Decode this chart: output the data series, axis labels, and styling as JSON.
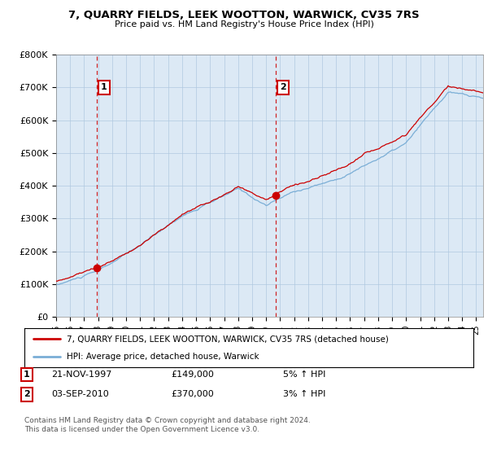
{
  "title": "7, QUARRY FIELDS, LEEK WOOTTON, WARWICK, CV35 7RS",
  "subtitle": "Price paid vs. HM Land Registry's House Price Index (HPI)",
  "ylim": [
    0,
    800000
  ],
  "yticks": [
    0,
    100000,
    200000,
    300000,
    400000,
    500000,
    600000,
    700000,
    800000
  ],
  "ytick_labels": [
    "£0",
    "£100K",
    "£200K",
    "£300K",
    "£400K",
    "£500K",
    "£600K",
    "£700K",
    "£800K"
  ],
  "sale1_year": 1997.9,
  "sale1_price": 149000,
  "sale1_label": "1",
  "sale1_date": "21-NOV-1997",
  "sale1_amount": "£149,000",
  "sale1_hpi": "5% ↑ HPI",
  "sale2_year": 2010.67,
  "sale2_price": 370000,
  "sale2_label": "2",
  "sale2_date": "03-SEP-2010",
  "sale2_amount": "£370,000",
  "sale2_hpi": "3% ↑ HPI",
  "line_color_red": "#cc0000",
  "line_color_blue": "#7aaed6",
  "marker_color": "#cc0000",
  "vline_color": "#cc0000",
  "bg_color": "#ffffff",
  "chart_bg_color": "#dce9f5",
  "grid_color": "#b0c8e0",
  "legend_label_red": "7, QUARRY FIELDS, LEEK WOOTTON, WARWICK, CV35 7RS (detached house)",
  "legend_label_blue": "HPI: Average price, detached house, Warwick",
  "copyright": "Contains HM Land Registry data © Crown copyright and database right 2024.\nThis data is licensed under the Open Government Licence v3.0."
}
